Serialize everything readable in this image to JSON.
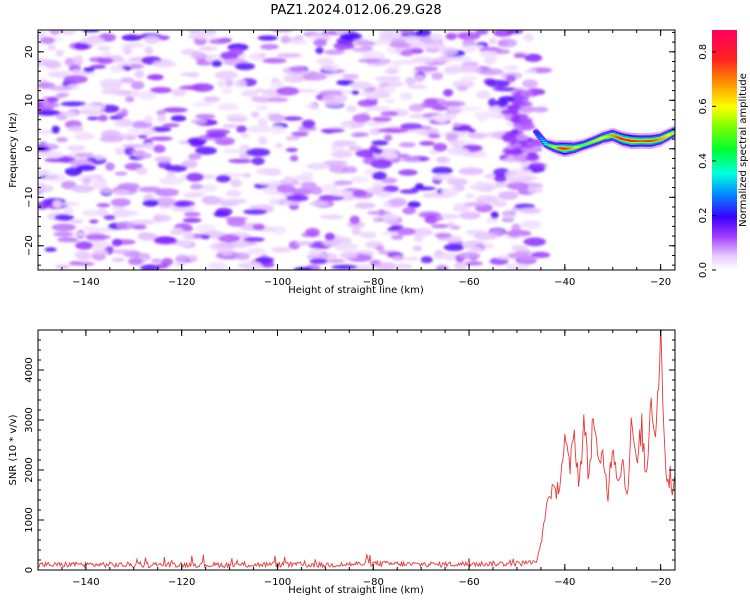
{
  "figure": {
    "title": "PAZ1.2024.012.06.29.G28"
  },
  "chart_data": [
    {
      "type": "heatmap",
      "title": "PAZ1.2024.012.06.29.G28",
      "xlabel": "Height of straight line (km)",
      "ylabel": "Frequency (Hz)",
      "xlim": [
        -150,
        -17
      ],
      "ylim": [
        -25,
        24.5
      ],
      "x_ticks": [
        -140,
        -120,
        -100,
        -80,
        -60,
        -40,
        -20
      ],
      "y_ticks": [
        -20,
        -10,
        0,
        10,
        20
      ],
      "colorbar": {
        "label": "Normalized spectral amplitude",
        "range": [
          0,
          0.88
        ],
        "ticks": [
          0.0,
          0.2,
          0.4,
          0.6,
          0.8
        ],
        "colormap": "gist_rainbow_r"
      },
      "signal_track": {
        "description_values": "frequency (Hz) of dominant spectral peak vs height (km)",
        "x": [
          -46,
          -44,
          -42,
          -40,
          -38,
          -36,
          -34,
          -32,
          -30,
          -28,
          -26,
          -24,
          -22,
          -20,
          -18,
          -17
        ],
        "y": [
          3.5,
          1.0,
          0.3,
          0.0,
          0.2,
          0.8,
          1.5,
          2.3,
          2.8,
          2.0,
          1.6,
          1.6,
          1.6,
          2.0,
          3.0,
          3.5
        ],
        "amplitude": [
          0.22,
          0.35,
          0.55,
          0.85,
          0.6,
          0.45,
          0.5,
          0.55,
          0.65,
          0.75,
          0.8,
          0.7,
          0.75,
          0.65,
          0.55,
          0.5
        ]
      },
      "noise_region": {
        "x": [
          -150,
          -45
        ],
        "amplitude_range": [
          0,
          0.15
        ]
      },
      "grid": false
    },
    {
      "type": "line",
      "xlabel": "Height of straight line (km)",
      "ylabel": "SNR (10 * v/v)",
      "xlim": [
        -150,
        -17
      ],
      "ylim": [
        0,
        4800
      ],
      "x_ticks": [
        -140,
        -120,
        -100,
        -80,
        -60,
        -40,
        -20
      ],
      "y_ticks": [
        0,
        1000,
        2000,
        3000,
        4000
      ],
      "color": "#e8393a",
      "series": [
        {
          "x": [
            -150,
            -140,
            -130,
            -120,
            -110,
            -100,
            -90,
            -80,
            -70,
            -60,
            -50,
            -46,
            -45,
            -44,
            -43,
            -42,
            -41,
            -40,
            -39,
            -38,
            -37,
            -36,
            -35,
            -34,
            -33,
            -32,
            -31,
            -30,
            -29,
            -28,
            -27,
            -26,
            -25,
            -24,
            -23,
            -22,
            -21,
            -20,
            -19,
            -18.5,
            -18,
            -17.5,
            -17
          ],
          "y": [
            100,
            110,
            100,
            110,
            100,
            110,
            100,
            130,
            110,
            120,
            130,
            150,
            500,
            1200,
            1600,
            1500,
            1800,
            2600,
            2000,
            2700,
            1700,
            3000,
            1800,
            3200,
            2000,
            2300,
            1500,
            2600,
            1800,
            2200,
            1500,
            3000,
            2000,
            2900,
            1800,
            3500,
            2700,
            4800,
            2200,
            1600,
            2000,
            1500,
            2100
          ]
        }
      ],
      "grid": false
    }
  ]
}
